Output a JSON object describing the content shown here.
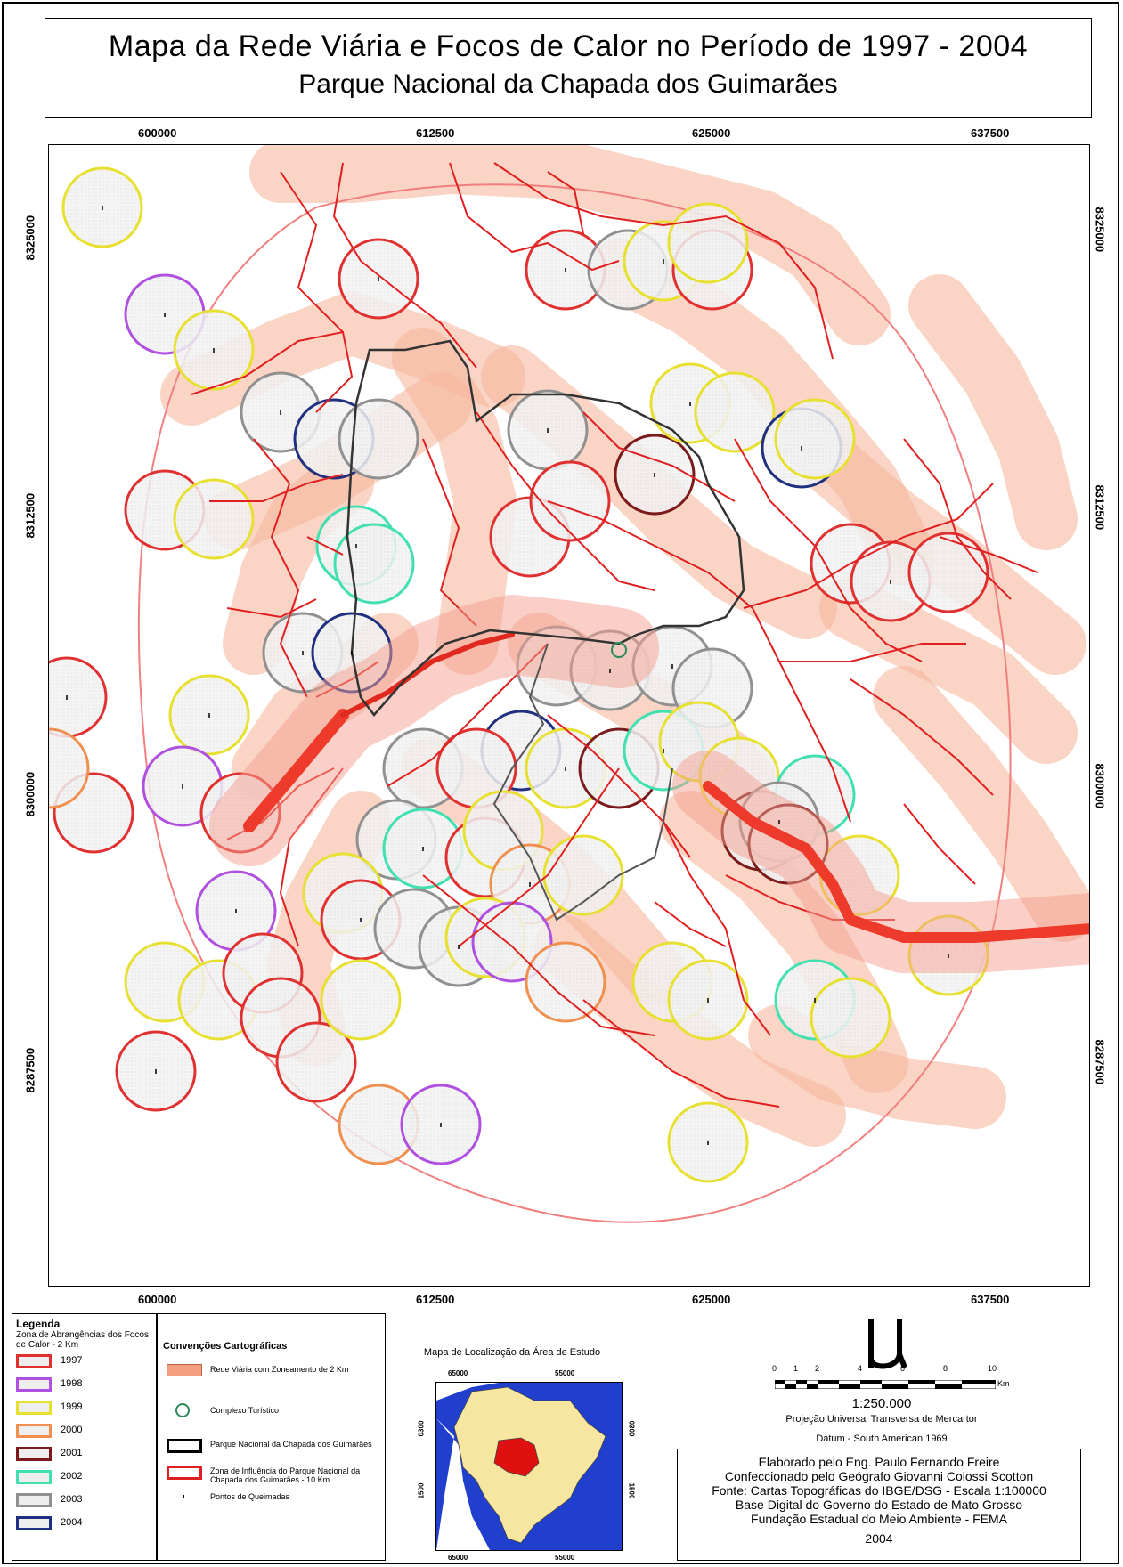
{
  "title": "Mapa da Rede Viária e Focos de Calor no Período de 1997 - 2004",
  "subtitle": "Parque Nacional da Chapada dos Guimarães",
  "grid": {
    "x_labels": [
      "600000",
      "612500",
      "625000",
      "637500"
    ],
    "y_labels": [
      "8325000",
      "8312500",
      "8300000",
      "8287500"
    ]
  },
  "legend": {
    "title": "Legenda",
    "subtitle": "Zona de Abrangências dos Focos de Calor - 2 Km",
    "items": [
      {
        "year": "1997",
        "color": "#e03030"
      },
      {
        "year": "1998",
        "color": "#b050e0"
      },
      {
        "year": "1999",
        "color": "#e8e030"
      },
      {
        "year": "2000",
        "color": "#f09050"
      },
      {
        "year": "2001",
        "color": "#7a1a1a"
      },
      {
        "year": "2002",
        "color": "#40e0b0"
      },
      {
        "year": "2003",
        "color": "#909090"
      },
      {
        "year": "2004",
        "color": "#203080"
      }
    ]
  },
  "conventions": {
    "title": "Convenções Cartográficas",
    "items": [
      {
        "label": "Rede Viária com Zoneamento de 2 Km",
        "kind": "road",
        "color": "#f4a080"
      },
      {
        "label": "Complexo Turístico",
        "kind": "circle",
        "color": "#2a8a5a"
      },
      {
        "label": "Parque Nacional da Chapada dos Guimarães",
        "kind": "box",
        "color": "#000000"
      },
      {
        "label": "Zona de Influência do Parque Nacional da Chapada dos Guimarães - 10 Km",
        "kind": "box",
        "color": "#e02020"
      },
      {
        "label": "Pontos de Queimadas",
        "kind": "dot",
        "color": "#000000"
      }
    ]
  },
  "location_map": {
    "title": "Mapa de Localização da Área de Estudo",
    "lon_labels": [
      "65000",
      "55000"
    ],
    "lat_labels": [
      "0300",
      "1500"
    ],
    "colors": {
      "ocean": "#1f3fcc",
      "brazil": "#f6e6a0",
      "study": "#e01010",
      "land": "#ffffff"
    }
  },
  "scale": {
    "ticks": [
      "0",
      "1",
      "2",
      "4",
      "6",
      "8",
      "10"
    ],
    "unit": "Km",
    "ratio": "1:250.000",
    "projection": "Projeção Universal Transversa de Mercartor",
    "datum": "Datum - South American 1969"
  },
  "credits": [
    "Elaborado pelo Eng. Paulo Fernando Freire",
    "Confeccionado pelo Geógrafo Giovanni Colossi Scotton",
    "Fonte: Cartas Topográficas do IBGE/DSG - Escala 1:100000",
    "Base Digital do Governo do Estado de Mato Grosso",
    "Fundação Estadual do Meio Ambiente - FEMA",
    "2004"
  ]
}
